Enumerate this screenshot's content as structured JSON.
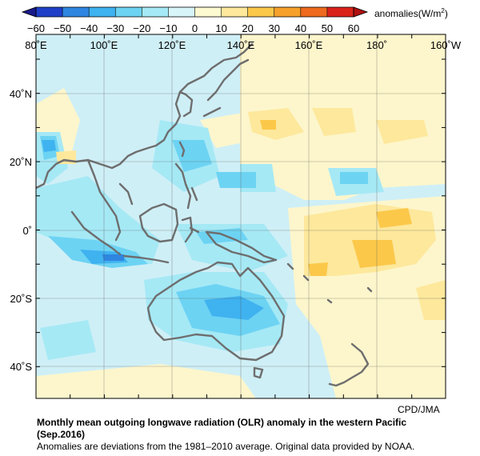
{
  "colorbar": {
    "ticks": [
      "−60",
      "−50",
      "−40",
      "−30",
      "−20",
      "−10",
      "0",
      "10",
      "20",
      "30",
      "40",
      "50",
      "60"
    ],
    "colors": [
      "#1f3fc8",
      "#2f86e0",
      "#3fb2f0",
      "#6dd3f3",
      "#a5e9f5",
      "#d8f6fa",
      "#fdf9d0",
      "#fde89c",
      "#fcc84a",
      "#f6a12a",
      "#ee6a1e",
      "#d9231a"
    ],
    "unit_prefix": "anomalies(W/m",
    "unit_sup": "2",
    "unit_suffix": ")"
  },
  "axes": {
    "top_labels": [
      "80˚E",
      "100˚E",
      "120˚E",
      "140˚E",
      "160˚E",
      "180˚",
      "160˚W"
    ],
    "left_labels": [
      "40˚N",
      "20˚N",
      "0˚",
      "20˚S",
      "40˚S"
    ]
  },
  "credit": "CPD/JMA",
  "caption": {
    "title_line1": "Monthly mean outgoing longwave radiation (OLR) anomaly in the western Pacific",
    "title_line2": "(Sep.2016)",
    "note": "Anomalies are deviations from the 1981–2010 average. Original data provided by NOAA."
  }
}
